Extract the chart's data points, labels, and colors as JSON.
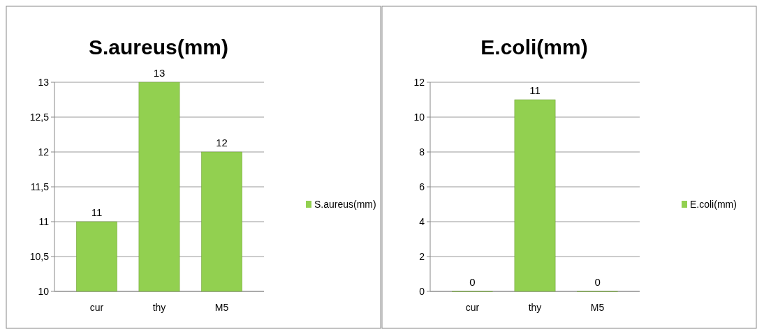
{
  "chart_data": [
    {
      "type": "bar",
      "title": "S.aureus(mm)",
      "categories": [
        "cur",
        "thy",
        "M5"
      ],
      "series": [
        {
          "name": "S.aureus(mm)",
          "color": "#92d050",
          "values": [
            11,
            13,
            12
          ]
        }
      ],
      "ylim": [
        10,
        13
      ],
      "yticks": [
        10,
        {
          "value": 10.5,
          "label": "10,5"
        },
        11,
        {
          "value": 11.5,
          "label": "11,5"
        },
        12,
        {
          "value": 12.5,
          "label": "12,5"
        },
        13
      ],
      "grid": "y",
      "legend": "right",
      "data_labels": true
    },
    {
      "type": "bar",
      "title": "E.coli(mm)",
      "categories": [
        "cur",
        "thy",
        "M5"
      ],
      "series": [
        {
          "name": "E.coli(mm)",
          "color": "#92d050",
          "values": [
            0,
            11,
            0
          ]
        }
      ],
      "ylim": [
        0,
        12
      ],
      "yticks": [
        0,
        2,
        4,
        6,
        8,
        10,
        12
      ],
      "grid": "y",
      "legend": "right",
      "data_labels": true
    }
  ]
}
